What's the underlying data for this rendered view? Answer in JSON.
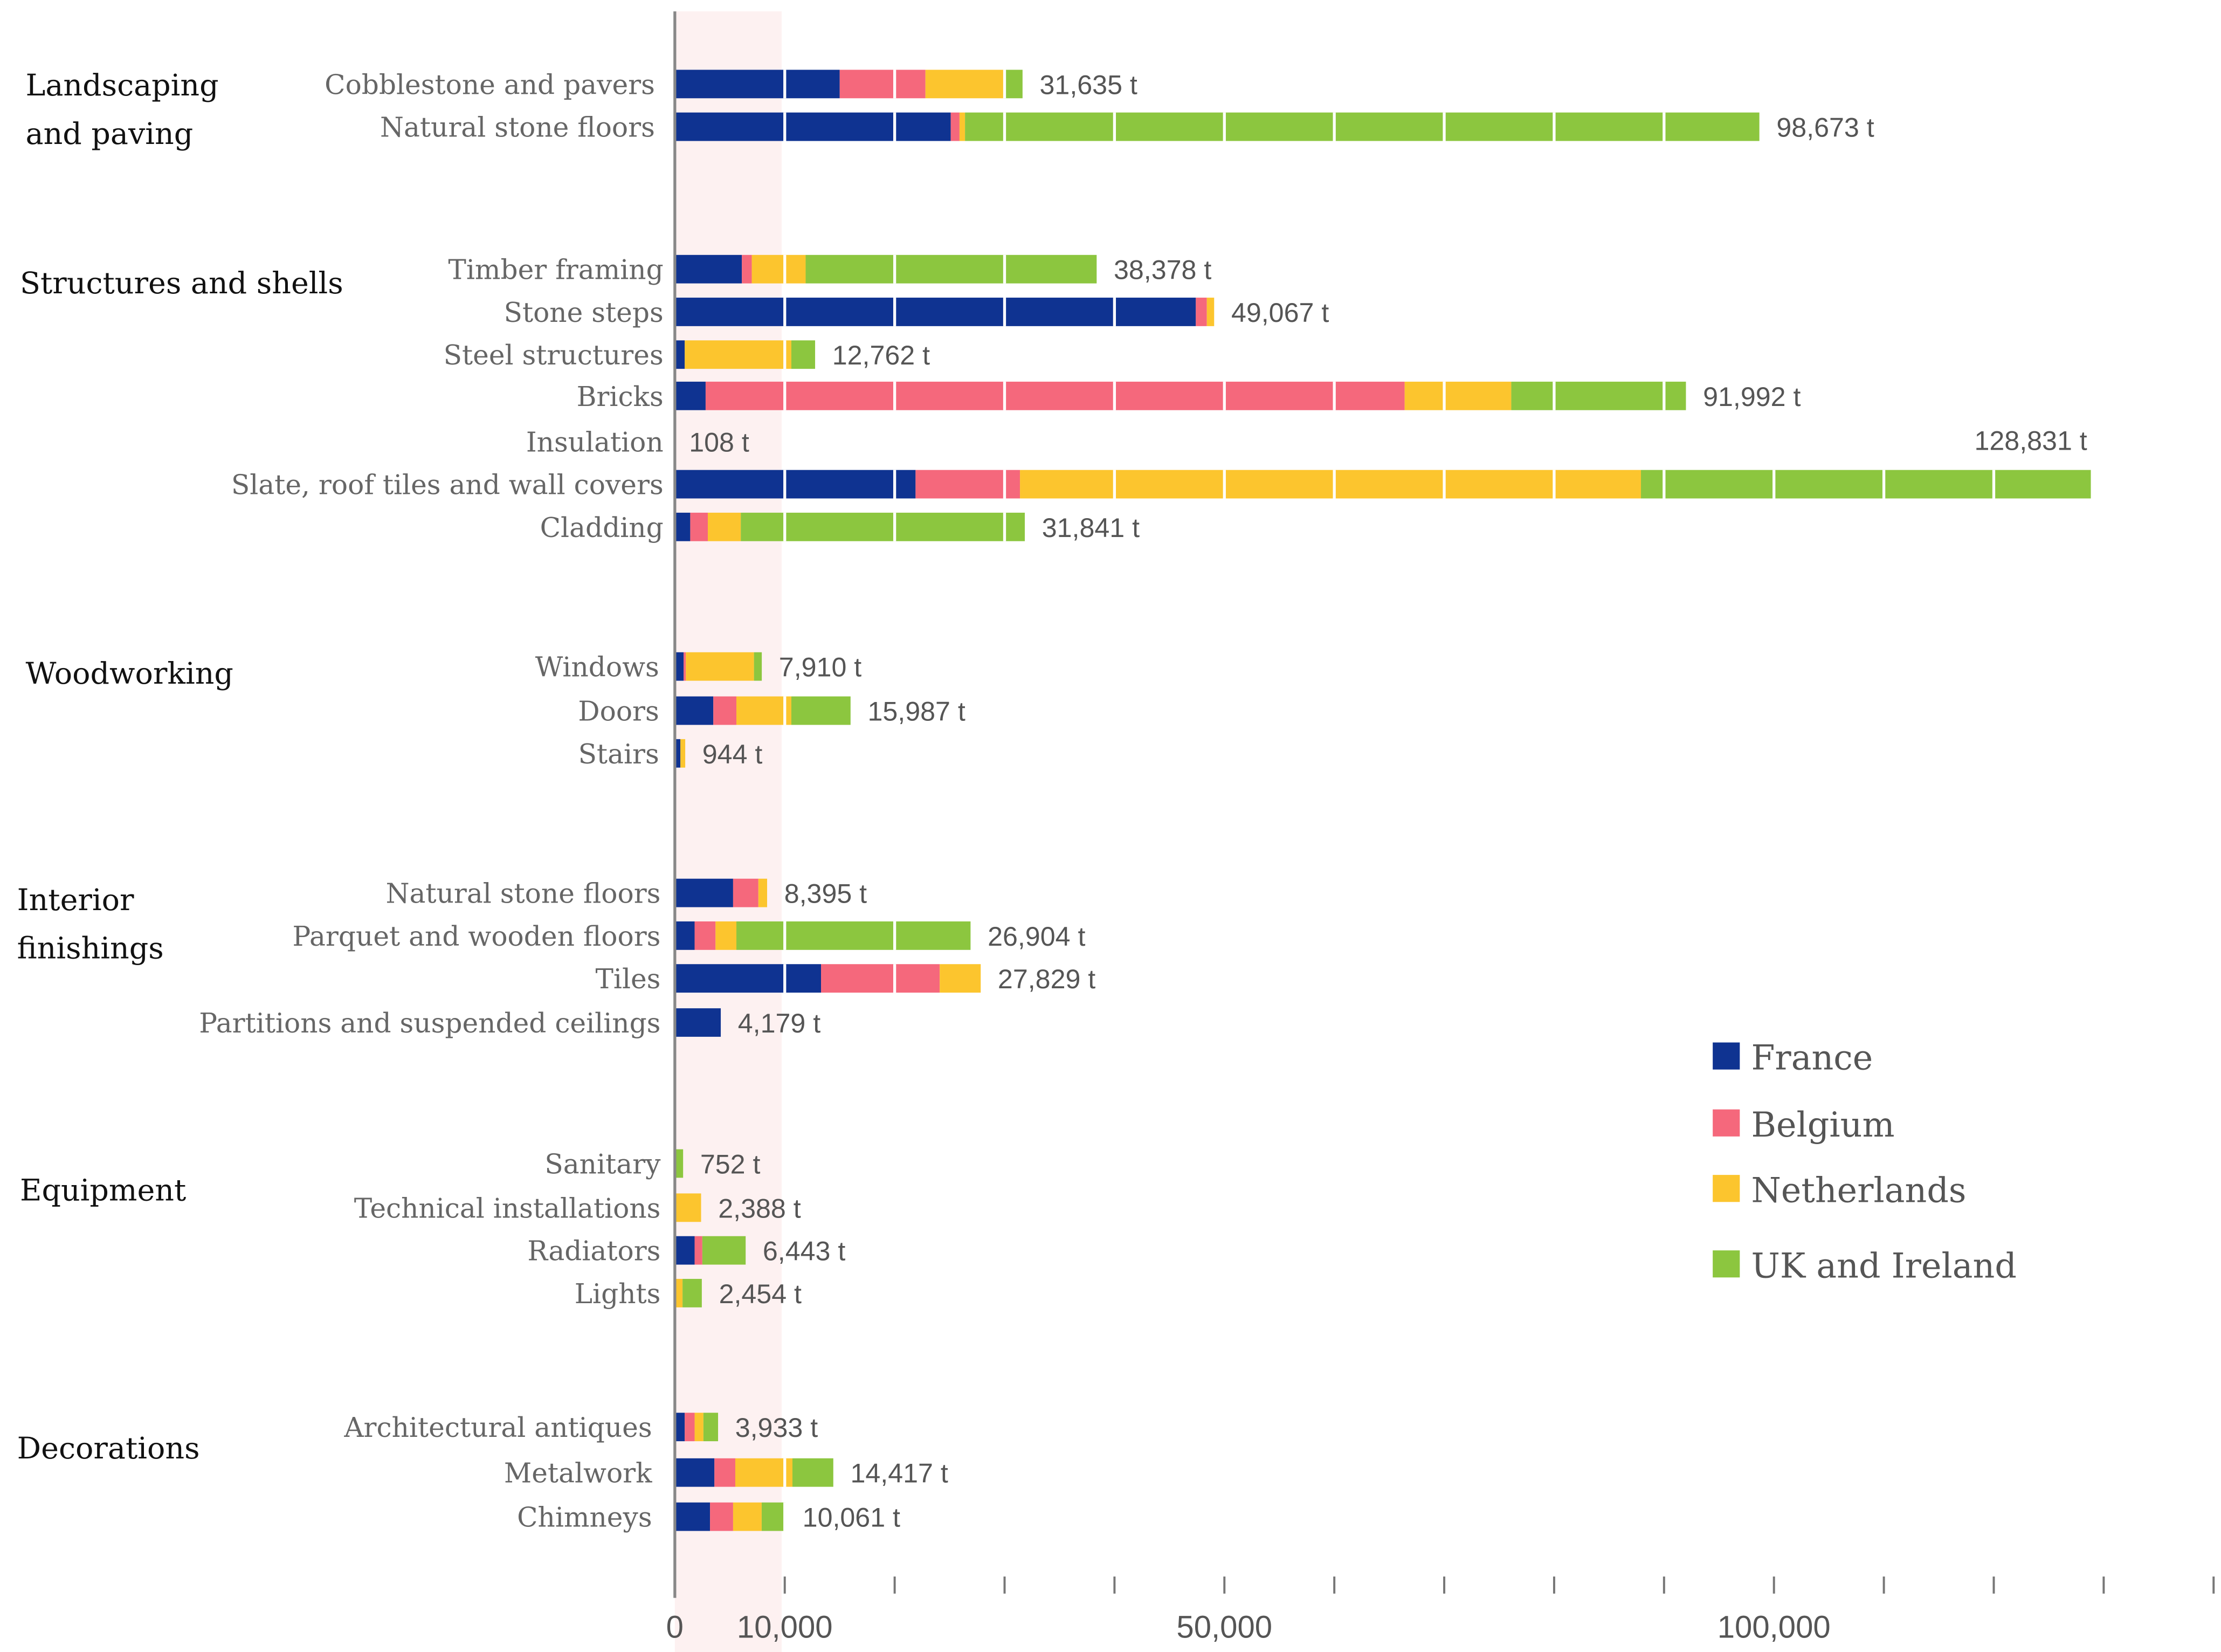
{
  "chart_data": {
    "type": "bar",
    "orientation": "horizontal",
    "stacked": true,
    "unit": "t",
    "xlim": [
      0,
      140000
    ],
    "x_ticks": [
      0,
      10000,
      20000,
      30000,
      40000,
      50000,
      60000,
      70000,
      80000,
      90000,
      100000,
      110000,
      120000,
      130000,
      140000
    ],
    "x_tick_labels": [
      {
        "value": 0,
        "label": "0"
      },
      {
        "value": 10000,
        "label": "10,000"
      },
      {
        "value": 50000,
        "label": "50,000"
      },
      {
        "value": 100000,
        "label": "100,000"
      }
    ],
    "legend_position": "right",
    "series": [
      {
        "name": "France",
        "color": "#0f3391"
      },
      {
        "name": "Belgium",
        "color": "#f5687c"
      },
      {
        "name": "Netherlands",
        "color": "#fcc52e"
      },
      {
        "name": "UK and Ireland",
        "color": "#8cc63f"
      }
    ],
    "groups": [
      {
        "name": "Landscaping and paving",
        "name_lines": [
          "Landscaping",
          "and paving"
        ],
        "rows": [
          {
            "label": "Cobblestone and pavers",
            "total_label": "31,635 t",
            "values": [
              15000,
              7800,
              7100,
              1735
            ]
          },
          {
            "label": "Natural stone floors",
            "total_label": "98,673 t",
            "values": [
              25100,
              800,
              500,
              72273
            ]
          }
        ]
      },
      {
        "name": "Structures and shells",
        "name_lines": [
          "Structures and shells"
        ],
        "rows": [
          {
            "label": "Timber framing",
            "total_label": "38,378 t",
            "values": [
              6100,
              900,
              4900,
              26478
            ]
          },
          {
            "label": "Stone steps",
            "total_label": "49,067 t",
            "values": [
              47400,
              1000,
              667,
              0
            ]
          },
          {
            "label": "Steel structures",
            "total_label": "12,762 t",
            "values": [
              900,
              0,
              9700,
              2162
            ]
          },
          {
            "label": "Bricks",
            "total_label": "91,992 t",
            "values": [
              2800,
              63600,
              9700,
              15892
            ]
          },
          {
            "label": "Insulation",
            "total_label": "108 t",
            "values": [
              0,
              0,
              0,
              108
            ]
          },
          {
            "label": "Slate, roof tiles and wall covers",
            "total_label": "128,831 t",
            "values": [
              21900,
              9500,
              56500,
              40931
            ]
          },
          {
            "label": "Cladding",
            "total_label": "31,841 t",
            "values": [
              1400,
              1600,
              3000,
              25841
            ]
          }
        ]
      },
      {
        "name": "Woodworking",
        "name_lines": [
          "Woodworking"
        ],
        "rows": [
          {
            "label": "Windows",
            "total_label": "7,910 t",
            "values": [
              800,
              200,
              6200,
              710
            ]
          },
          {
            "label": "Doors",
            "total_label": "15,987 t",
            "values": [
              3500,
              2100,
              5000,
              5387
            ]
          },
          {
            "label": "Stairs",
            "total_label": "944 t",
            "values": [
              500,
              0,
              444,
              0
            ]
          }
        ]
      },
      {
        "name": "Interior finishings",
        "name_lines": [
          "Interior",
          "finishings"
        ],
        "rows": [
          {
            "label": "Natural stone floors",
            "total_label": "8,395 t",
            "values": [
              5300,
              2300,
              795,
              0
            ]
          },
          {
            "label": "Parquet and wooden floors",
            "total_label": "26,904 t",
            "values": [
              1800,
              1900,
              1900,
              21304
            ]
          },
          {
            "label": "Tiles",
            "total_label": "27,829 t",
            "values": [
              13300,
              10800,
              3729,
              0
            ]
          },
          {
            "label": "Partitions and suspended ceilings",
            "total_label": "4,179 t",
            "values": [
              4179,
              0,
              0,
              0
            ]
          }
        ]
      },
      {
        "name": "Equipment",
        "name_lines": [
          "Equipment"
        ],
        "rows": [
          {
            "label": "Sanitary",
            "total_label": "752 t",
            "values": [
              0,
              0,
              0,
              752
            ]
          },
          {
            "label": "Technical installations",
            "total_label": "2,388 t",
            "values": [
              0,
              0,
              2388,
              0
            ]
          },
          {
            "label": "Radiators",
            "total_label": "6,443 t",
            "values": [
              1800,
              700,
              0,
              3943
            ]
          },
          {
            "label": "Lights",
            "total_label": "2,454 t",
            "values": [
              0,
              0,
              700,
              1754
            ]
          }
        ]
      },
      {
        "name": "Decorations",
        "name_lines": [
          "Decorations"
        ],
        "rows": [
          {
            "label": "Architectural antiques",
            "total_label": "3,933 t",
            "values": [
              900,
              900,
              800,
              1333
            ]
          },
          {
            "label": "Metalwork",
            "total_label": "14,417 t",
            "values": [
              3600,
              1900,
              5200,
              3717
            ]
          },
          {
            "label": "Chimneys",
            "total_label": "10,061 t",
            "values": [
              3200,
              2100,
              2600,
              2161
            ]
          }
        ]
      }
    ]
  }
}
